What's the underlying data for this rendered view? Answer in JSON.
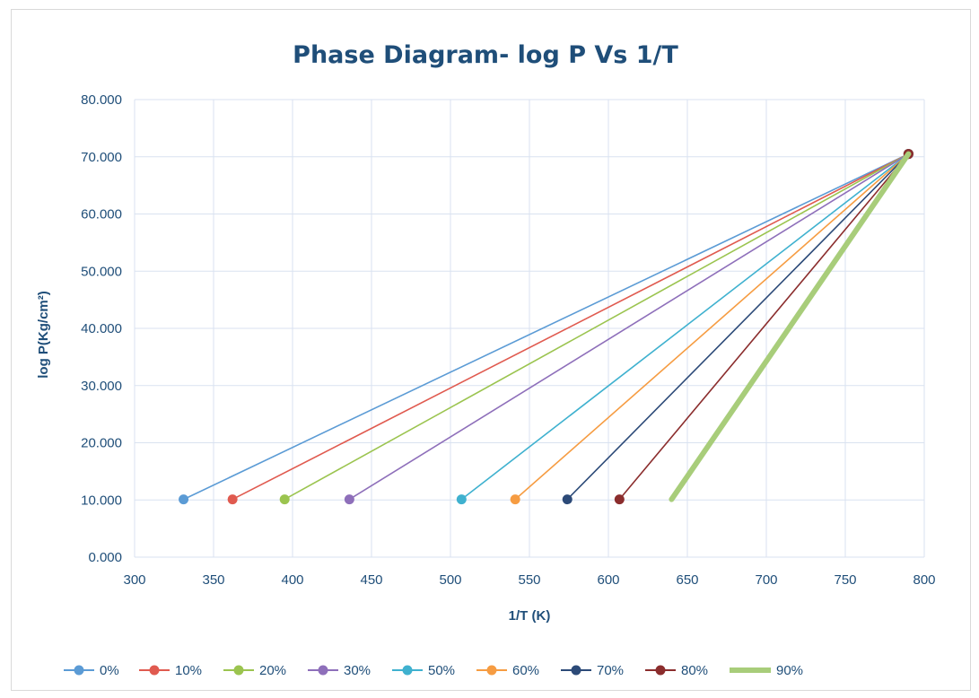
{
  "chart_data": {
    "type": "line",
    "title": "Phase Diagram- log P Vs 1/T",
    "xlabel": "1/T (K)",
    "ylabel": "log P(Kg/cm²)",
    "xlim": [
      300,
      800
    ],
    "ylim": [
      0,
      80
    ],
    "x_ticks": [
      "300",
      "350",
      "400",
      "450",
      "500",
      "550",
      "600",
      "650",
      "700",
      "750",
      "800"
    ],
    "y_ticks": [
      "0.000",
      "10.000",
      "20.000",
      "30.000",
      "40.000",
      "50.000",
      "60.000",
      "70.000",
      "80.000"
    ],
    "grid": "on",
    "legend_position": "bottom",
    "series": [
      {
        "name": "0%",
        "color": "#5b9bd5",
        "points": [
          [
            331,
            10.1
          ],
          [
            790,
            70.5
          ]
        ]
      },
      {
        "name": "10%",
        "color": "#e05a4f",
        "points": [
          [
            362,
            10.1
          ],
          [
            790,
            70.5
          ]
        ]
      },
      {
        "name": "20%",
        "color": "#9bc44f",
        "points": [
          [
            395,
            10.1
          ],
          [
            790,
            70.5
          ]
        ]
      },
      {
        "name": "30%",
        "color": "#8e6fba",
        "points": [
          [
            436,
            10.1
          ],
          [
            790,
            70.5
          ]
        ]
      },
      {
        "name": "50%",
        "color": "#3fb1cf",
        "points": [
          [
            507,
            10.1
          ],
          [
            790,
            70.5
          ]
        ]
      },
      {
        "name": "60%",
        "color": "#f69c42",
        "points": [
          [
            541,
            10.1
          ],
          [
            790,
            70.5
          ]
        ]
      },
      {
        "name": "70%",
        "color": "#2c4a78",
        "points": [
          [
            574,
            10.1
          ],
          [
            790,
            70.5
          ]
        ]
      },
      {
        "name": "80%",
        "color": "#8b2d2d",
        "points": [
          [
            607,
            10.1
          ],
          [
            790,
            70.5
          ]
        ]
      },
      {
        "name": "90%",
        "color": "#a8cd7a",
        "points": [
          [
            640,
            10.1
          ],
          [
            790,
            70.5
          ]
        ]
      }
    ]
  }
}
